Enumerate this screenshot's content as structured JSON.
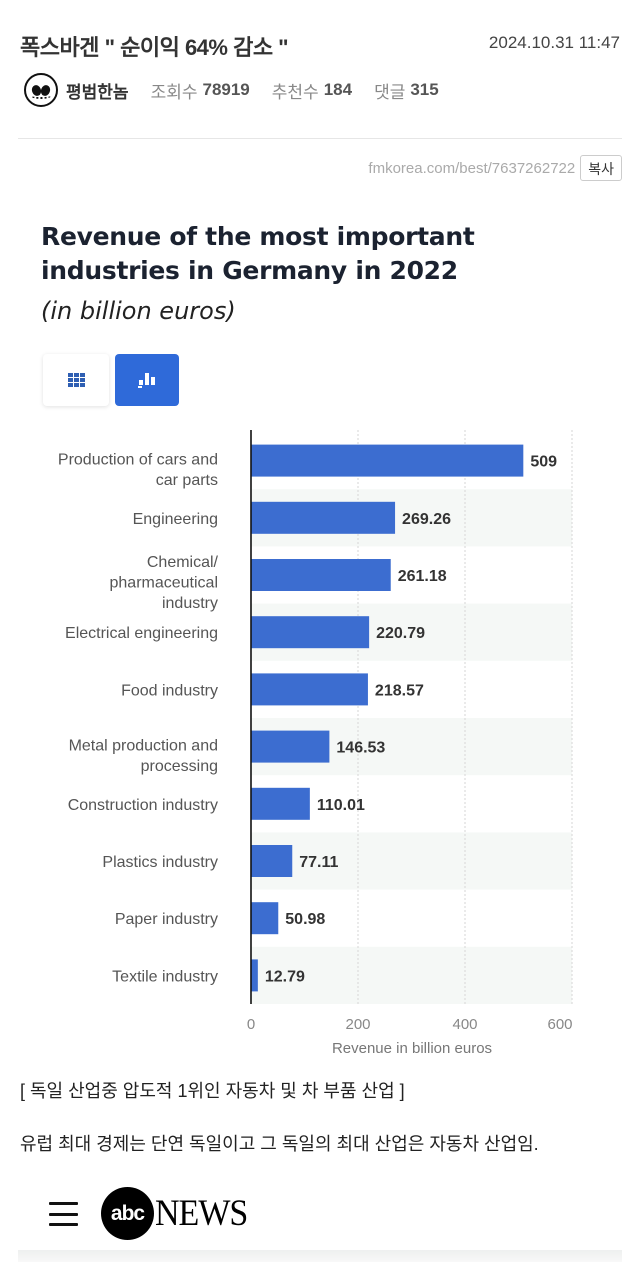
{
  "post": {
    "title": "폭스바겐 \" 순이익 64% 감소 \"",
    "datetime": "2024.10.31 11:47",
    "author": "평범한놈",
    "views_label": "조회수",
    "views": "78919",
    "recommends_label": "추천수",
    "recommends": "184",
    "comments_label": "댓글",
    "comments": "315",
    "url": "fmkorea.com/best/7637262722",
    "copy_label": "복사"
  },
  "chart_header": {
    "title": "Revenue of the most important industries in Germany in 2022",
    "subtitle": "(in billion euros)",
    "toggle": {
      "table_icon": "grid-icon",
      "bar_icon": "bar-chart-icon",
      "active": "bar"
    }
  },
  "chart_data": {
    "type": "bar",
    "orientation": "horizontal",
    "title": "Revenue of the most important industries in Germany in 2022",
    "subtitle": "(in billion euros)",
    "categories": [
      [
        "Production of cars and",
        "car parts"
      ],
      [
        "Engineering"
      ],
      [
        "Chemical/",
        "pharmaceutical",
        "industry"
      ],
      [
        "Electrical engineering"
      ],
      [
        "Food industry"
      ],
      [
        "Metal production and",
        "processing"
      ],
      [
        "Construction industry"
      ],
      [
        "Plastics industry"
      ],
      [
        "Paper industry"
      ],
      [
        "Textile industry"
      ]
    ],
    "values": [
      509,
      269.26,
      261.18,
      220.79,
      218.57,
      146.53,
      110.01,
      77.11,
      50.98,
      12.79
    ],
    "value_labels": [
      "509",
      "269.26",
      "261.18",
      "220.79",
      "218.57",
      "146.53",
      "110.01",
      "77.11",
      "50.98",
      "12.79"
    ],
    "xlabel": "Revenue in billion euros",
    "ylabel": "",
    "xlim": [
      0,
      600
    ],
    "xticks": [
      0,
      200,
      400,
      600
    ],
    "xtick_labels": [
      "0",
      "200",
      "400",
      "600"
    ],
    "grid": true,
    "legend": "none",
    "bar_color": "#3c6dd0",
    "band_color": "#f5f8f6"
  },
  "article": {
    "caption": "[ 독일 산업중 압도적 1위인 자동차 및 차 부품 산업 ]",
    "paragraph": "유럽 최대 경제는 단연 독일이고 그 독일의 최대 산업은 자동차 산업임."
  },
  "embed": {
    "menu_icon": "hamburger-menu-icon",
    "logo_circle": "abc",
    "logo_text": "NEWS"
  }
}
